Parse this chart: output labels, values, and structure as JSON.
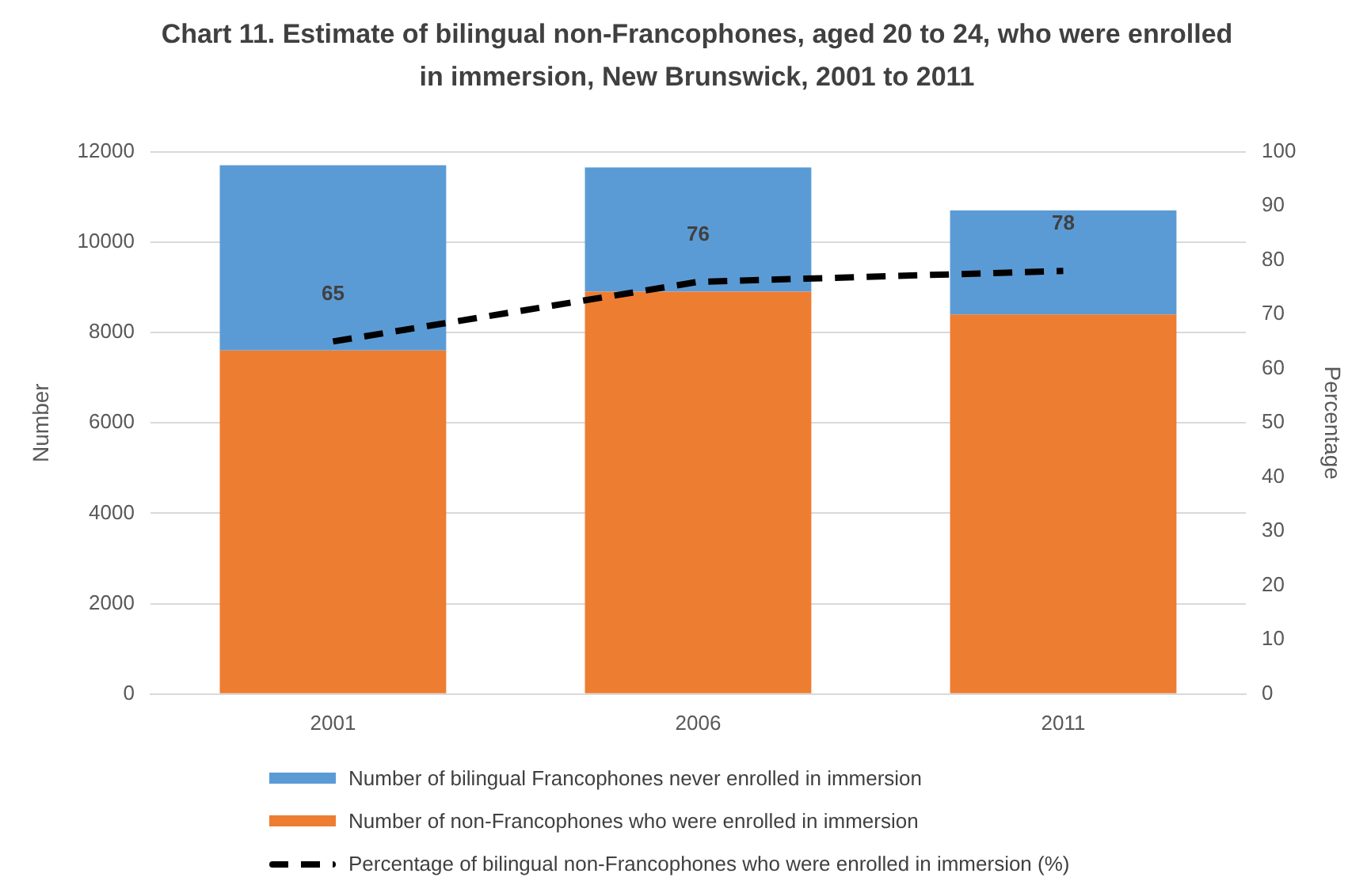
{
  "chart_data": {
    "type": "bar",
    "title": "Chart 11. Estimate of bilingual non-Francophones, aged 20 to 24, who were enrolled in immersion, New Brunswick, 2001 to 2011",
    "categories": [
      "2001",
      "2006",
      "2011"
    ],
    "stacked": true,
    "series": [
      {
        "name": "Number of non-Francophones who were enrolled in immersion",
        "color": "#ed7d31",
        "values": [
          7600,
          8900,
          8400
        ]
      },
      {
        "name": "Number of bilingual Francophones never enrolled in immersion",
        "color": "#5b9bd5",
        "values": [
          4100,
          2750,
          2300
        ]
      },
      {
        "type": "line",
        "axis": "y2",
        "name": "Percentage of bilingual non-Francophones who were enrolled in immersion (%)",
        "color": "#000000",
        "values": [
          65,
          76,
          78
        ],
        "value_labels": [
          "65",
          "76",
          "78"
        ],
        "line_style": "dashed",
        "marker": "none"
      }
    ],
    "ylabel": "Number",
    "y2label": "Percentage",
    "ylim": [
      0,
      12000
    ],
    "yticks": [
      0,
      2000,
      4000,
      6000,
      8000,
      10000,
      12000
    ],
    "y2lim": [
      0,
      100
    ],
    "y2ticks": [
      0,
      10,
      20,
      30,
      40,
      50,
      60,
      70,
      80,
      90,
      100
    ],
    "grid": "y",
    "legend": "bottom"
  }
}
